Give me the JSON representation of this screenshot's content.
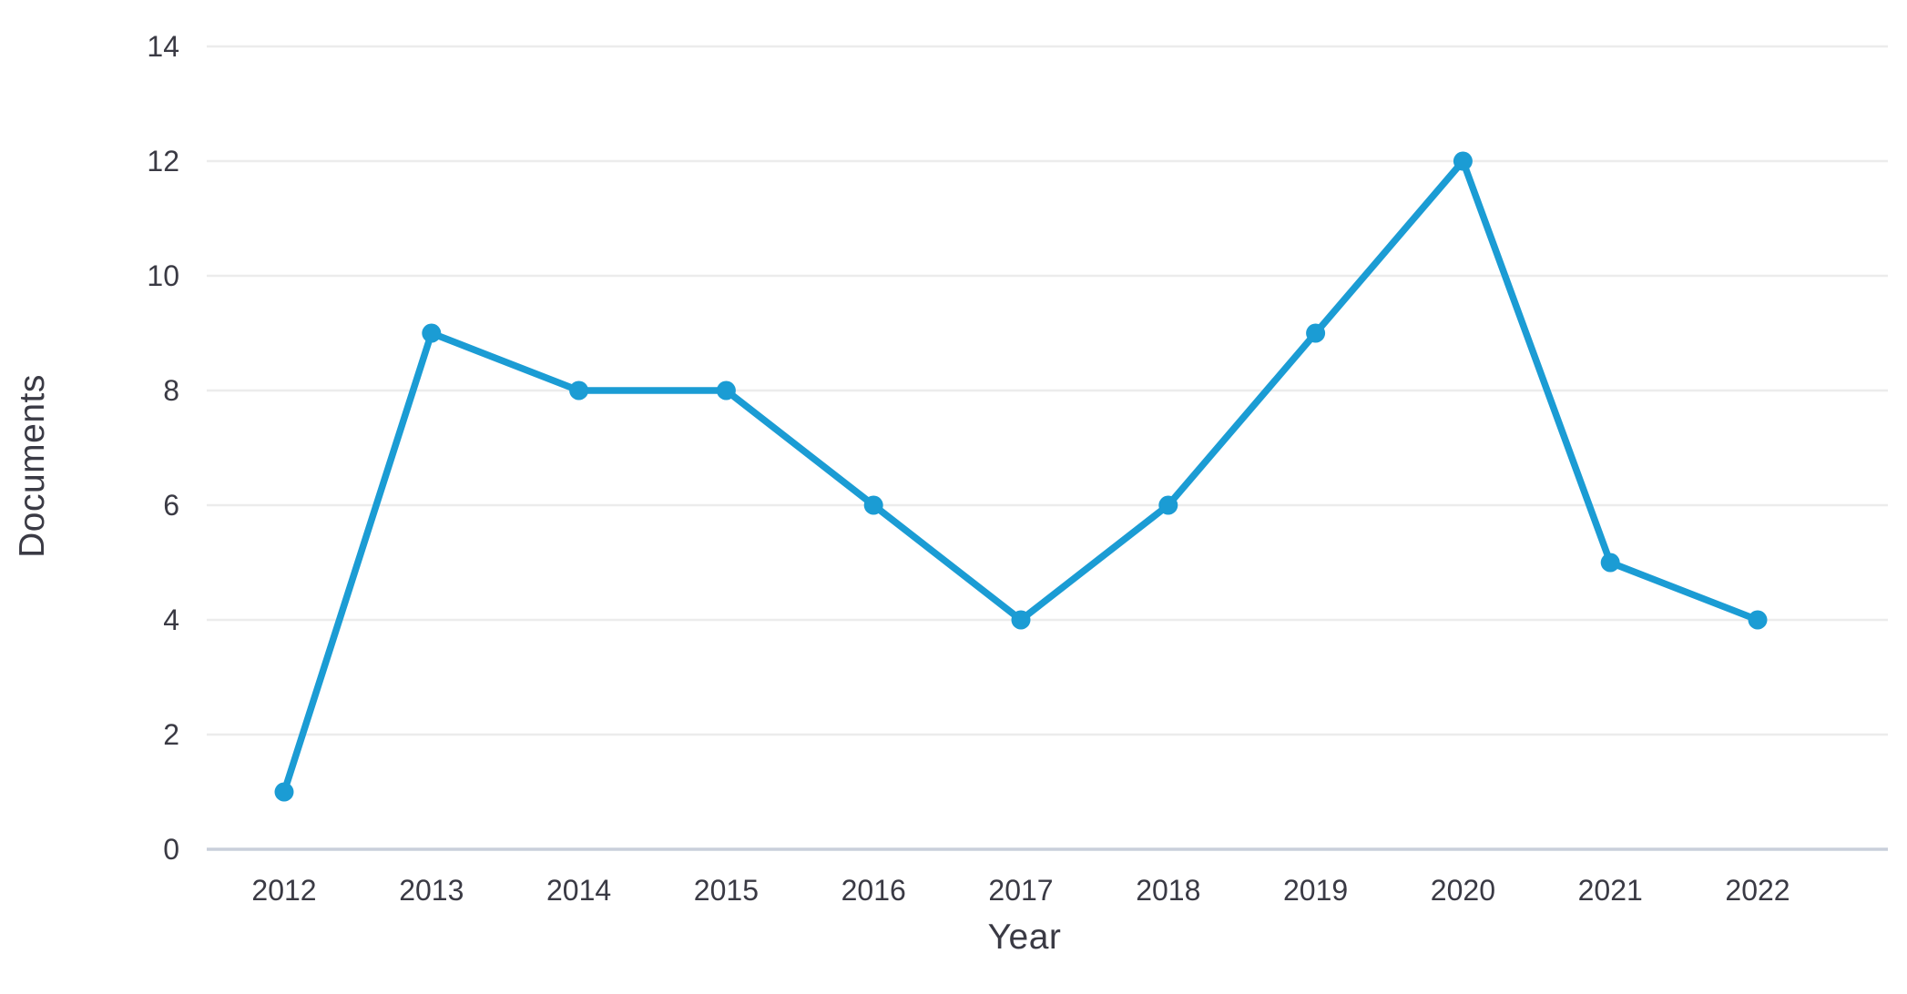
{
  "chart_data": {
    "type": "line",
    "title": "",
    "xlabel": "Year",
    "ylabel": "Documents",
    "categories": [
      "2012",
      "2013",
      "2014",
      "2015",
      "2016",
      "2017",
      "2018",
      "2019",
      "2020",
      "2021",
      "2022"
    ],
    "series": [
      {
        "name": "Documents",
        "values": [
          1,
          9,
          8,
          8,
          6,
          4,
          6,
          9,
          12,
          5,
          4
        ]
      }
    ],
    "ylim": [
      0,
      14
    ],
    "yticks": [
      0,
      2,
      4,
      6,
      8,
      10,
      12,
      14
    ],
    "grid": "horizontal",
    "legend": "none",
    "marker": "circle",
    "colors": {
      "line": "#1b9cd4",
      "marker": "#1b9cd4",
      "gridline": "#ececec",
      "zero_axis": "#c9cfdb",
      "tick_text": "#3a3a44"
    }
  }
}
